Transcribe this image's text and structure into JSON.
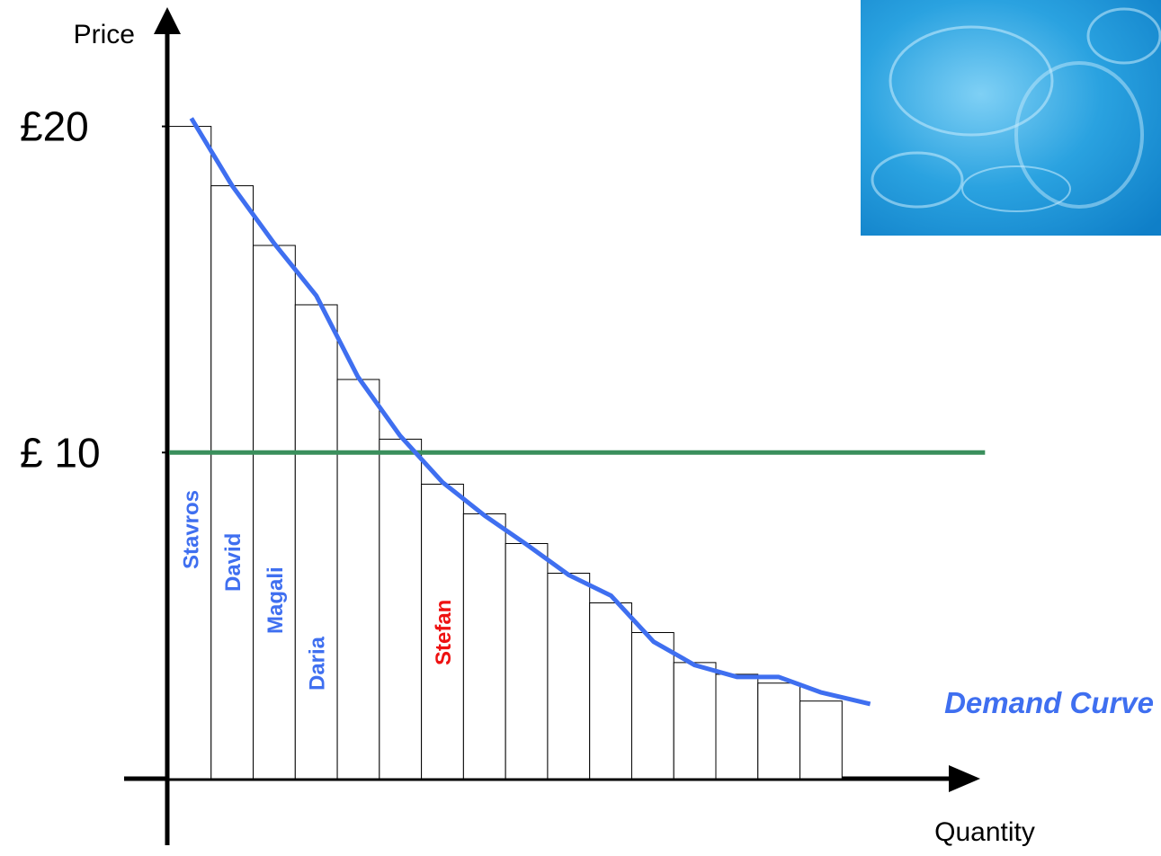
{
  "chart_data": {
    "type": "bar",
    "x_label": "Quantity",
    "y_label": "Price",
    "categories": [
      "Stavros",
      "David",
      "Magali",
      "Daria",
      null,
      null,
      "Stefan",
      null,
      null,
      null,
      null,
      null,
      null,
      null,
      null,
      null
    ],
    "label_colors": [
      "#3f6ff0",
      "#3f6ff0",
      "#3f6ff0",
      "#3f6ff0",
      null,
      null,
      "#ee1111",
      null,
      null,
      null,
      null,
      null,
      null,
      null,
      null,
      null
    ],
    "values": [
      20,
      18.18,
      16.35,
      14.53,
      12.24,
      10.41,
      9.03,
      8.12,
      7.21,
      6.3,
      5.39,
      4.48,
      3.56,
      3.2,
      2.93,
      2.38
    ],
    "color": "#ffffff",
    "xlim": [
      0,
      19.5
    ],
    "ylim": [
      0,
      23.6
    ],
    "yticks": [
      {
        "value": 10,
        "label": "£ 10"
      },
      {
        "value": 20,
        "label": "£20"
      }
    ],
    "demand_curve": {
      "name": "Demand Curve",
      "color": "#3f6ff0",
      "x": [
        0.53,
        1.5,
        2.5,
        3.5,
        4.49,
        5.49,
        6.5,
        7.5,
        8.5,
        9.51,
        10.51,
        11.52,
        12.5,
        13.5,
        14.49,
        15.49,
        16.67
      ],
      "values": [
        20.25,
        18.18,
        16.41,
        14.81,
        12.32,
        10.52,
        9.09,
        8.07,
        7.18,
        6.24,
        5.61,
        4.2,
        3.48,
        3.12,
        3.12,
        2.65,
        2.29
      ]
    },
    "price_line": {
      "value": 10,
      "x": [
        0,
        19.4
      ],
      "color": "#3a8f5c"
    }
  }
}
